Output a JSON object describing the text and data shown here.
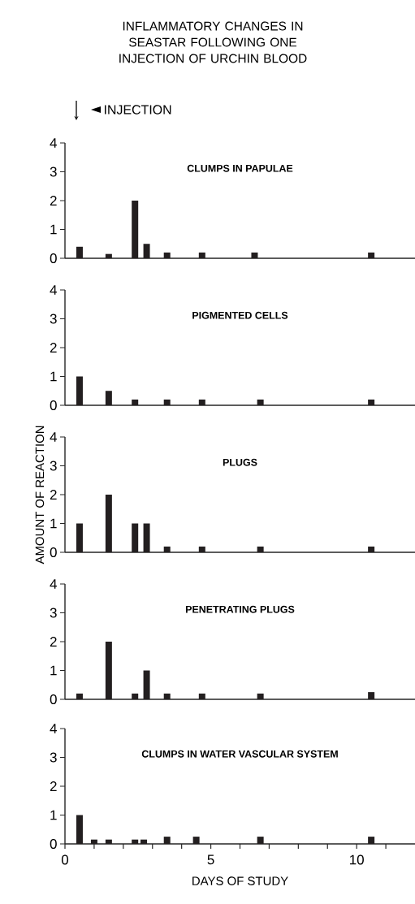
{
  "chart_data": [
    {
      "type": "bar",
      "title": "INFLAMMATORY CHANGES IN SEASTAR FOLLOWING ONE INJECTION OF URCHIN BLOOD",
      "subtitle": "CLUMPS IN PAPULAE",
      "annotations": [
        "INJECTION"
      ],
      "x": [
        0.5,
        1.5,
        2.4,
        2.8,
        3.5,
        4.7,
        6.5,
        10.5
      ],
      "values": [
        0.4,
        0.15,
        2,
        0.5,
        0.2,
        0.2,
        0.2,
        0.2
      ],
      "color": "#231f20",
      "xlim": [
        0,
        12
      ],
      "ylim": [
        0,
        4
      ],
      "yticks": [
        0,
        1,
        2,
        3,
        4
      ],
      "tick_labels": "y"
    },
    {
      "type": "bar",
      "subtitle": "PIGMENTED CELLS",
      "x": [
        0.5,
        1.5,
        2.4,
        3.5,
        4.7,
        6.7,
        10.5
      ],
      "values": [
        1,
        0.5,
        0.2,
        0.2,
        0.2,
        0.2,
        0.2
      ],
      "color": "#231f20",
      "xlim": [
        0,
        12
      ],
      "ylim": [
        0,
        4
      ],
      "yticks": [
        0,
        1,
        2,
        3,
        4
      ],
      "tick_labels": "y"
    },
    {
      "type": "bar",
      "subtitle": "PLUGS",
      "ylabel": "AMOUNT OF REACTION",
      "x": [
        0.5,
        1.5,
        2.4,
        2.8,
        3.5,
        4.7,
        6.7,
        10.5
      ],
      "values": [
        1,
        2,
        1,
        1,
        0.2,
        0.2,
        0.2,
        0.2
      ],
      "color": "#231f20",
      "xlim": [
        0,
        12
      ],
      "ylim": [
        0,
        4
      ],
      "yticks": [
        0,
        1,
        2,
        3,
        4
      ],
      "tick_labels": "y"
    },
    {
      "type": "bar",
      "subtitle": "PENETRATING PLUGS",
      "x": [
        0.5,
        1.5,
        2.4,
        2.8,
        3.5,
        4.7,
        6.7,
        10.5
      ],
      "values": [
        0.2,
        2,
        0.2,
        1,
        0.2,
        0.2,
        0.2,
        0.25
      ],
      "color": "#231f20",
      "xlim": [
        0,
        12
      ],
      "ylim": [
        0,
        4
      ],
      "yticks": [
        0,
        1,
        2,
        3,
        4
      ],
      "tick_labels": "y"
    },
    {
      "type": "bar",
      "subtitle": "CLUMPS IN WATER VASCULAR SYSTEM",
      "xlabel": "DAYS OF STUDY",
      "x": [
        0.5,
        1,
        1.5,
        2.4,
        2.7,
        3.5,
        4.5,
        6.7,
        10.5
      ],
      "values": [
        1,
        0.15,
        0.15,
        0.15,
        0.15,
        0.25,
        0.25,
        0.25,
        0.25
      ],
      "color": "#231f20",
      "xlim": [
        0,
        12
      ],
      "ylim": [
        0,
        4
      ],
      "yticks": [
        0,
        1,
        2,
        3,
        4
      ],
      "xticks": [
        0,
        {
          "value": 1,
          "label": null
        },
        {
          "value": 2,
          "label": null
        },
        {
          "value": 3,
          "label": null
        },
        {
          "value": 4,
          "label": null
        },
        5,
        {
          "value": 6,
          "label": null
        },
        {
          "value": 7,
          "label": null
        },
        {
          "value": 8,
          "label": null
        },
        {
          "value": 9,
          "label": null
        },
        10,
        {
          "value": 11,
          "label": null
        }
      ]
    }
  ]
}
